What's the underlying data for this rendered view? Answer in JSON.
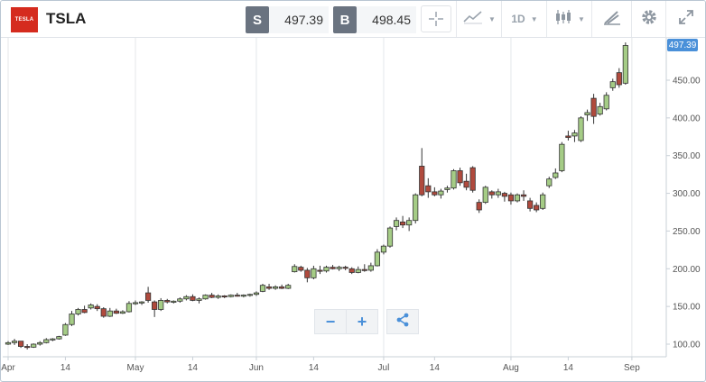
{
  "toolbar": {
    "logo_text": "TESLA",
    "symbol": "TSLA",
    "sell_label": "S",
    "sell_price": "497.39",
    "buy_label": "B",
    "buy_price": "498.45",
    "interval": "1D"
  },
  "icons": {
    "crosshair": "crosshair-icon",
    "chart_type": "line-chart-icon",
    "candles": "candlestick-icon",
    "draw": "draw-tool-icon",
    "settings": "gear-icon",
    "fullscreen": "expand-icon",
    "zoom_out": "minus-icon",
    "zoom_in": "plus-icon",
    "share": "share-icon"
  },
  "zoom": {
    "out_label": "−",
    "in_label": "+"
  },
  "last_price_tag": "497.39",
  "colors": {
    "up": "#a5cc86",
    "down": "#b04a3d",
    "grid": "#e8ebee",
    "tag": "#4a90d9"
  },
  "chart_data": {
    "type": "candlestick",
    "x_ticks": [
      "Apr",
      "14",
      "May",
      "14",
      "Jun",
      "14",
      "Jul",
      "14",
      "Aug",
      "14",
      "Sep"
    ],
    "y_ticks": [
      "100.00",
      "150.00",
      "200.00",
      "250.00",
      "300.00",
      "350.00",
      "400.00",
      "450.00"
    ],
    "ylim": [
      90,
      500
    ],
    "grid": "vertical at month starts",
    "series": [
      {
        "values": [
          [
            100,
            104,
            99,
            102
          ],
          [
            102,
            107,
            99,
            104
          ],
          [
            104,
            104,
            95,
            97
          ],
          [
            97,
            100,
            93,
            96
          ],
          [
            96,
            101,
            95,
            100
          ],
          [
            100,
            104,
            98,
            102
          ],
          [
            102,
            108,
            101,
            106
          ],
          [
            106,
            108,
            104,
            107
          ],
          [
            107,
            111,
            106,
            110
          ],
          [
            112,
            128,
            111,
            126
          ],
          [
            126,
            144,
            124,
            140
          ],
          [
            140,
            148,
            138,
            146
          ],
          [
            146,
            151,
            141,
            142
          ],
          [
            148,
            154,
            146,
            152
          ],
          [
            150,
            153,
            144,
            147
          ],
          [
            147,
            149,
            135,
            137
          ],
          [
            137,
            148,
            136,
            144
          ],
          [
            144,
            147,
            140,
            141
          ],
          [
            141,
            145,
            140,
            143
          ],
          [
            143,
            157,
            142,
            154
          ],
          [
            154,
            158,
            152,
            155
          ],
          [
            155,
            157,
            152,
            156
          ],
          [
            168,
            176,
            155,
            158
          ],
          [
            156,
            158,
            136,
            146
          ],
          [
            146,
            161,
            144,
            158
          ],
          [
            158,
            160,
            154,
            156
          ],
          [
            156,
            158,
            154,
            157
          ],
          [
            157,
            162,
            155,
            160
          ],
          [
            160,
            165,
            158,
            163
          ],
          [
            163,
            166,
            157,
            158
          ],
          [
            158,
            162,
            154,
            160
          ],
          [
            160,
            166,
            159,
            165
          ],
          [
            165,
            168,
            161,
            162
          ],
          [
            162,
            166,
            160,
            164
          ],
          [
            164,
            165,
            161,
            163
          ],
          [
            163,
            166,
            162,
            165
          ],
          [
            165,
            168,
            163,
            164
          ],
          [
            164,
            166,
            162,
            165
          ],
          [
            165,
            167,
            163,
            166
          ],
          [
            166,
            170,
            164,
            168
          ],
          [
            170,
            180,
            169,
            178
          ],
          [
            176,
            180,
            172,
            174
          ],
          [
            174,
            178,
            172,
            176
          ],
          [
            176,
            179,
            173,
            174
          ],
          [
            174,
            180,
            173,
            178
          ],
          [
            196,
            206,
            195,
            203
          ],
          [
            202,
            204,
            196,
            198
          ],
          [
            198,
            201,
            182,
            188
          ],
          [
            188,
            204,
            186,
            200
          ],
          [
            198,
            204,
            193,
            197
          ],
          [
            197,
            204,
            195,
            202
          ],
          [
            202,
            205,
            199,
            200
          ],
          [
            200,
            204,
            197,
            202
          ],
          [
            202,
            204,
            198,
            201
          ],
          [
            200,
            202,
            193,
            195
          ],
          [
            195,
            203,
            194,
            199
          ],
          [
            199,
            206,
            196,
            198
          ],
          [
            198,
            208,
            196,
            204
          ],
          [
            204,
            226,
            203,
            222
          ],
          [
            222,
            232,
            219,
            230
          ],
          [
            230,
            256,
            228,
            254
          ],
          [
            256,
            268,
            251,
            264
          ],
          [
            262,
            270,
            254,
            258
          ],
          [
            258,
            268,
            250,
            264
          ],
          [
            264,
            300,
            260,
            298
          ],
          [
            336,
            360,
            296,
            298
          ],
          [
            310,
            320,
            294,
            302
          ],
          [
            302,
            308,
            296,
            298
          ],
          [
            298,
            306,
            293,
            303
          ],
          [
            305,
            310,
            301,
            307
          ],
          [
            307,
            332,
            305,
            330
          ],
          [
            330,
            334,
            310,
            314
          ],
          [
            316,
            326,
            304,
            308
          ],
          [
            334,
            336,
            301,
            304
          ],
          [
            288,
            292,
            274,
            278
          ],
          [
            288,
            310,
            286,
            308
          ],
          [
            302,
            304,
            293,
            298
          ],
          [
            298,
            306,
            294,
            302
          ],
          [
            300,
            302,
            289,
            296
          ],
          [
            298,
            301,
            285,
            290
          ],
          [
            290,
            300,
            288,
            298
          ],
          [
            298,
            304,
            290,
            296
          ],
          [
            290,
            294,
            276,
            280
          ],
          [
            284,
            288,
            275,
            278
          ],
          [
            280,
            301,
            278,
            298
          ],
          [
            310,
            322,
            307,
            319
          ],
          [
            321,
            333,
            319,
            327
          ],
          [
            330,
            368,
            328,
            365
          ],
          [
            376,
            383,
            370,
            374
          ],
          [
            376,
            384,
            368,
            380
          ],
          [
            370,
            402,
            368,
            400
          ],
          [
            404,
            411,
            396,
            407
          ],
          [
            426,
            432,
            392,
            402
          ],
          [
            405,
            420,
            403,
            415
          ],
          [
            412,
            434,
            410,
            430
          ],
          [
            440,
            452,
            436,
            448
          ],
          [
            460,
            466,
            440,
            444
          ],
          [
            446,
            500,
            444,
            496
          ]
        ]
      }
    ]
  }
}
